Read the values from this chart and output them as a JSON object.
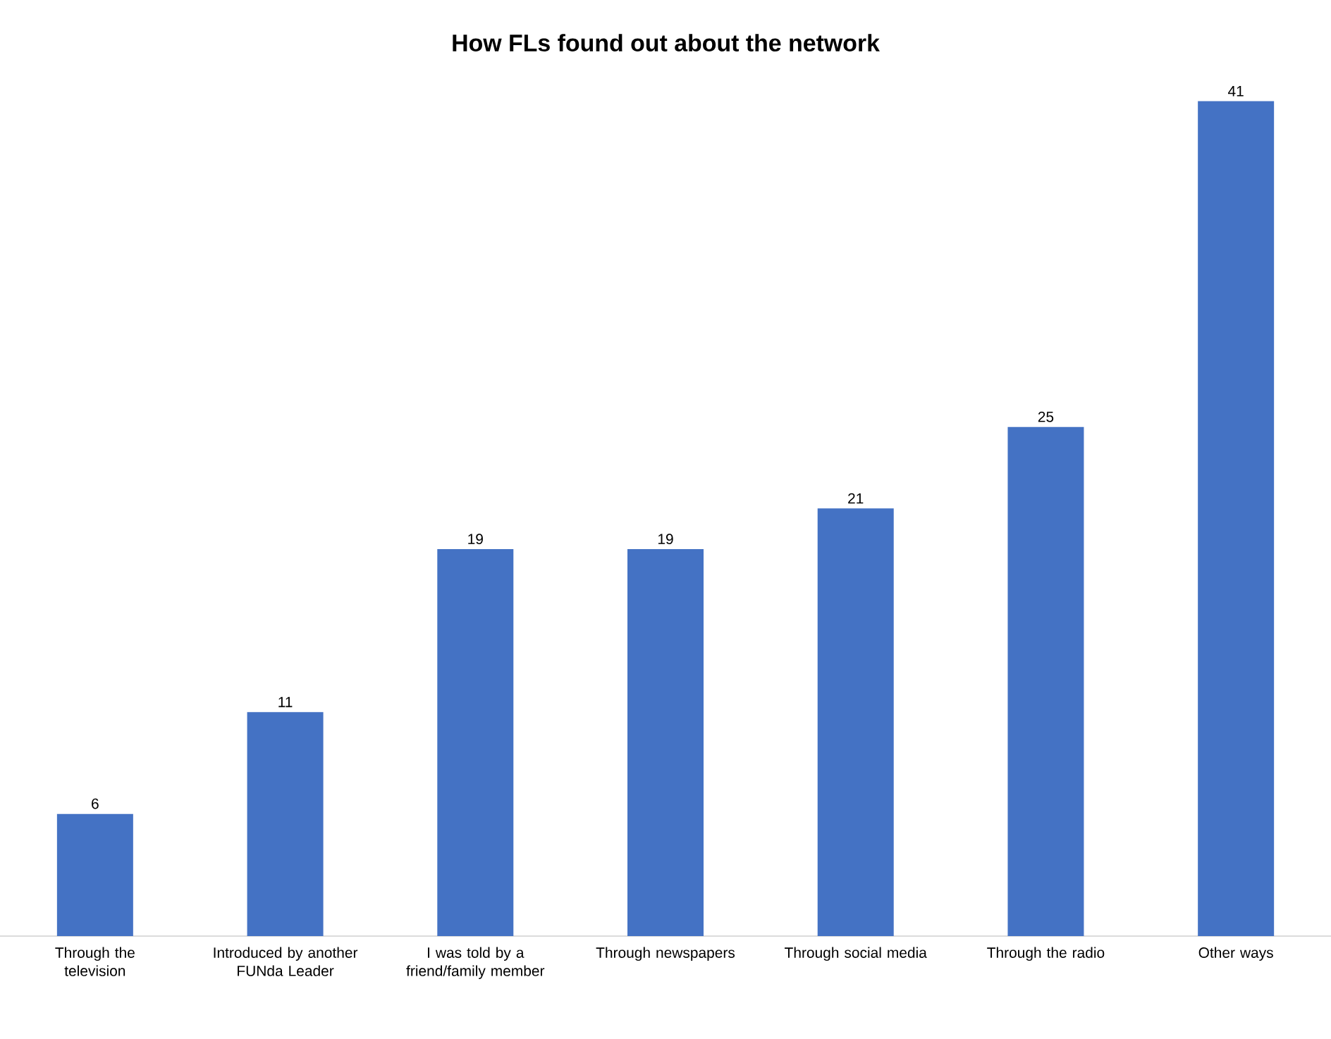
{
  "chart_data": {
    "type": "bar",
    "title": "How FLs found out about the network",
    "categories": [
      "Through the television",
      "Introduced by another FUNda Leader",
      "I was told by a friend/family member",
      "Through newspapers",
      "Through social media",
      "Through the radio",
      "Other ways"
    ],
    "values": [
      6,
      11,
      19,
      19,
      21,
      25,
      41
    ],
    "color": "#4472c4",
    "data_labels": true
  }
}
